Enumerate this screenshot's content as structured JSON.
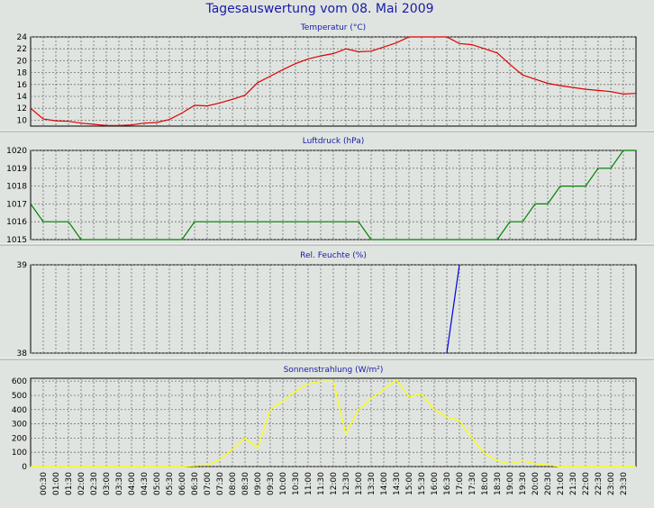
{
  "header": {
    "title": "Tagesauswertung vom 08. Mai 2009"
  },
  "colors": {
    "background": "#dfe4e0",
    "plot_bg": "#dfe4e0",
    "grid": "#707070",
    "title": "#1a1aa8"
  },
  "chart_data": [
    {
      "type": "line",
      "title": "Temperatur (°C)",
      "color": "#e00000",
      "ylim": [
        9,
        24
      ],
      "yticks": [
        10,
        12,
        14,
        16,
        18,
        20,
        22,
        24
      ],
      "grid": true,
      "x": [
        0,
        0.5,
        1,
        1.5,
        2,
        2.5,
        3,
        3.5,
        4,
        4.5,
        5,
        5.5,
        6,
        6.5,
        7,
        7.5,
        8,
        8.5,
        9,
        9.5,
        10,
        10.5,
        11,
        11.5,
        12,
        12.5,
        13,
        13.5,
        14,
        14.5,
        15,
        15.5,
        16,
        16.5,
        17,
        17.5,
        18,
        18.5,
        19,
        19.5,
        20,
        20.5,
        21,
        21.5,
        22,
        22.5,
        23,
        23.5,
        24
      ],
      "values": [
        12.0,
        10.2,
        9.9,
        9.8,
        9.5,
        9.3,
        9.1,
        9.1,
        9.2,
        9.5,
        9.6,
        10.1,
        11.2,
        12.5,
        12.4,
        12.9,
        13.5,
        14.2,
        16.3,
        17.4,
        18.5,
        19.5,
        20.3,
        20.8,
        21.2,
        22.0,
        21.5,
        21.6,
        22.3,
        23.0,
        24.0,
        24.0,
        24.0,
        24.0,
        22.9,
        22.7,
        22.0,
        21.3,
        19.4,
        17.6,
        16.9,
        16.2,
        15.8,
        15.5,
        15.2,
        15.0,
        14.8,
        14.4,
        14.5
      ]
    },
    {
      "type": "line",
      "title": "Luftdruck (hPa)",
      "color": "#008000",
      "ylim": [
        1015,
        1020
      ],
      "yticks": [
        1015,
        1016,
        1017,
        1018,
        1019,
        1020
      ],
      "grid": true,
      "x": [
        0,
        0.5,
        1,
        1.5,
        2,
        2.5,
        3,
        3.5,
        4,
        4.5,
        5,
        5.5,
        6,
        6.5,
        7,
        7.5,
        8,
        8.5,
        9,
        9.5,
        10,
        10.5,
        11,
        11.5,
        12,
        12.5,
        13,
        13.5,
        14,
        14.5,
        15,
        15.5,
        16,
        16.5,
        17,
        17.5,
        18,
        18.5,
        19,
        19.5,
        20,
        20.5,
        21,
        21.5,
        22,
        22.5,
        23,
        23.5,
        24
      ],
      "values": [
        1017,
        1016,
        1016,
        1016,
        1015,
        1015,
        1015,
        1015,
        1015,
        1015,
        1015,
        1015,
        1015,
        1016,
        1016,
        1016,
        1016,
        1016,
        1016,
        1016,
        1016,
        1016,
        1016,
        1016,
        1016,
        1016,
        1016,
        1015,
        1015,
        1015,
        1015,
        1015,
        1015,
        1015,
        1015,
        1015,
        1015,
        1015,
        1016,
        1016,
        1017,
        1017,
        1018,
        1018,
        1018,
        1019,
        1019,
        1020,
        1020
      ]
    },
    {
      "type": "line",
      "title": "Rel. Feuchte (%)",
      "color": "#0000e0",
      "ylim": [
        38,
        39
      ],
      "yticks": [
        38,
        39
      ],
      "grid": true,
      "x": [
        16.5,
        17
      ],
      "values": [
        38,
        39
      ]
    },
    {
      "type": "line",
      "title": "Sonnenstrahlung (W/m²)",
      "color": "#ffff00",
      "ylim": [
        0,
        620
      ],
      "yticks": [
        0,
        100,
        200,
        300,
        400,
        500,
        600
      ],
      "grid": true,
      "x": [
        0,
        0.5,
        1,
        1.5,
        2,
        2.5,
        3,
        3.5,
        4,
        4.5,
        5,
        5.5,
        6,
        6.5,
        7,
        7.5,
        8,
        8.5,
        9,
        9.5,
        10,
        10.5,
        11,
        11.5,
        12,
        12.5,
        13,
        13.5,
        14,
        14.5,
        15,
        15.5,
        16,
        16.5,
        17,
        17.5,
        18,
        18.5,
        19,
        19.5,
        20,
        20.5,
        21,
        21.5,
        22,
        22.5,
        23,
        23.5,
        24
      ],
      "values": [
        0,
        0,
        0,
        0,
        0,
        0,
        0,
        0,
        0,
        0,
        0,
        0,
        0,
        5,
        10,
        50,
        120,
        200,
        130,
        400,
        460,
        530,
        580,
        600,
        600,
        230,
        400,
        480,
        540,
        610,
        490,
        510,
        400,
        350,
        320,
        200,
        90,
        40,
        20,
        40,
        20,
        10,
        0,
        0,
        0,
        0,
        0,
        0,
        0
      ]
    }
  ],
  "x_axis": {
    "tick_labels": [
      "00:30",
      "01:00",
      "01:30",
      "02:00",
      "02:30",
      "03:00",
      "03:30",
      "04:00",
      "04:30",
      "05:00",
      "05:30",
      "06:00",
      "06:30",
      "07:00",
      "07:30",
      "08:00",
      "08:30",
      "09:00",
      "09:30",
      "10:00",
      "10:30",
      "11:00",
      "11:30",
      "12:00",
      "12:30",
      "13:00",
      "13:30",
      "14:00",
      "14:30",
      "15:00",
      "15:30",
      "16:00",
      "16:30",
      "17:00",
      "17:30",
      "18:00",
      "18:30",
      "19:00",
      "19:30",
      "20:00",
      "20:30",
      "21:00",
      "21:30",
      "22:00",
      "22:30",
      "23:00",
      "23:30"
    ],
    "tick_hours": [
      0.5,
      1,
      1.5,
      2,
      2.5,
      3,
      3.5,
      4,
      4.5,
      5,
      5.5,
      6,
      6.5,
      7,
      7.5,
      8,
      8.5,
      9,
      9.5,
      10,
      10.5,
      11,
      11.5,
      12,
      12.5,
      13,
      13.5,
      14,
      14.5,
      15,
      15.5,
      16,
      16.5,
      17,
      17.5,
      18,
      18.5,
      19,
      19.5,
      20,
      20.5,
      21,
      21.5,
      22,
      22.5,
      23,
      23.5
    ],
    "range": [
      0,
      24
    ]
  }
}
